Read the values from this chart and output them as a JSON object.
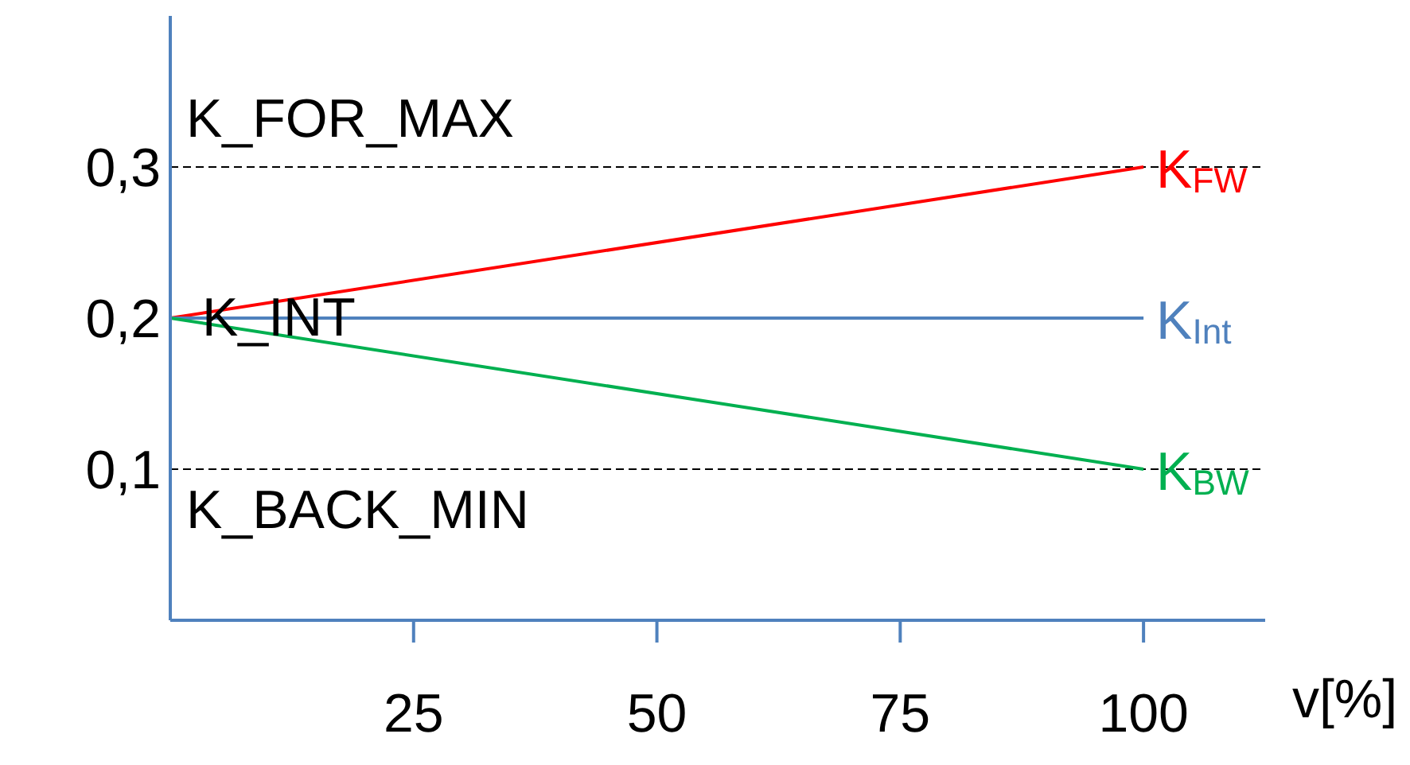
{
  "chart_data": {
    "type": "line",
    "xlabel": "v[%]",
    "x": [
      0,
      100
    ],
    "series": [
      {
        "name": "K$_{FW}$",
        "color": "#ff0000",
        "values": [
          0.2,
          0.3
        ]
      },
      {
        "name": "K$_{Int}$",
        "color": "#4f81bd",
        "values": [
          0.2,
          0.2
        ]
      },
      {
        "name": "K$_{BW}$",
        "color": "#00b050",
        "values": [
          0.2,
          0.1
        ]
      }
    ],
    "xlim": [
      0,
      112.5
    ],
    "xticks": [
      25,
      50,
      75,
      100
    ],
    "ylim": [
      0,
      0.4
    ],
    "yticks": [
      {
        "value": 0.1,
        "label": "0,1"
      },
      {
        "value": 0.2,
        "label": "0,2"
      },
      {
        "value": 0.3,
        "label": "0,3"
      }
    ],
    "ref_lines": [
      {
        "axis": "y",
        "value": 0.3,
        "label": "K_FOR_MAX",
        "color": "#000000",
        "line_style": "dashed"
      },
      {
        "axis": "y",
        "value": 0.1,
        "label": "K_BACK_MIN",
        "color": "#000000",
        "line_style": "dashed"
      }
    ],
    "annotations": [
      {
        "text": "K_INT",
        "x": 0,
        "y": 0.2
      }
    ],
    "grid": false,
    "legend": false,
    "marker": "none",
    "line_style": "solid"
  }
}
